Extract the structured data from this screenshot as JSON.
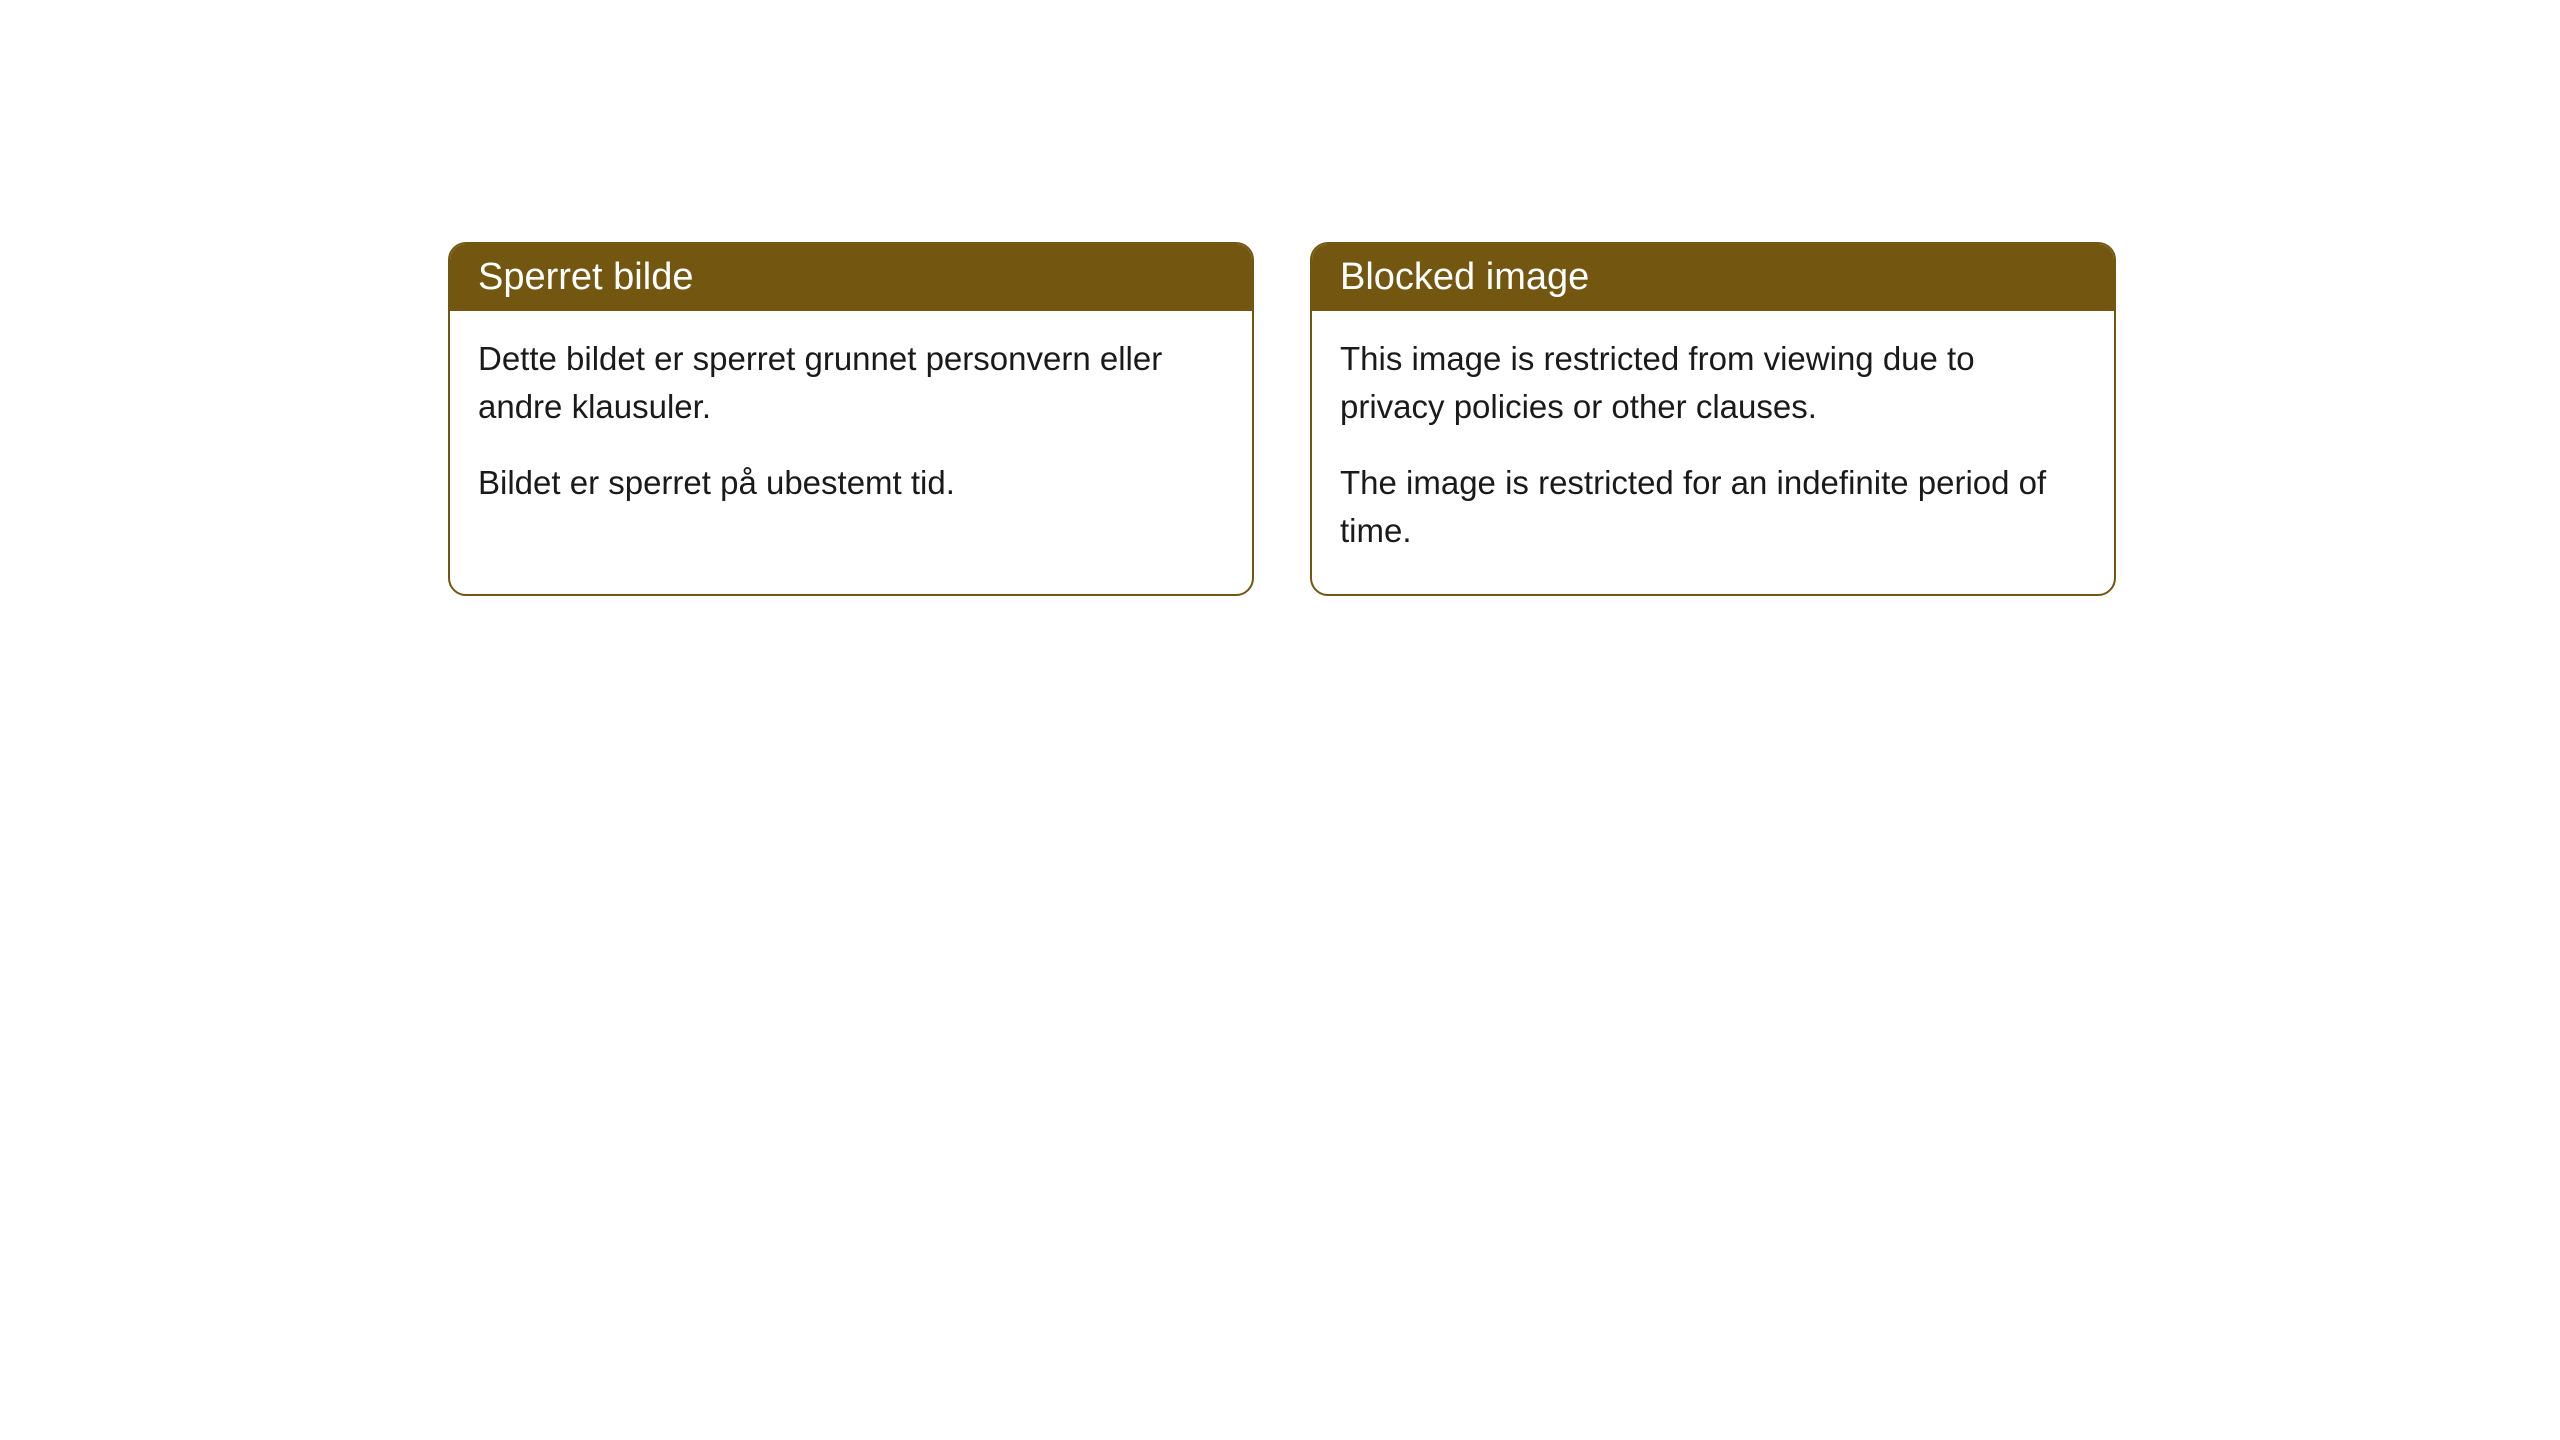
{
  "cards": [
    {
      "title": "Sperret bilde",
      "para1": "Dette bildet er sperret grunnet personvern eller andre klausuler.",
      "para2": "Bildet er sperret på ubestemt tid."
    },
    {
      "title": "Blocked image",
      "para1": "This image is restricted from viewing due to privacy policies or other clauses.",
      "para2": "The image is restricted for an indefinite period of time."
    }
  ],
  "style": {
    "header_bg": "#735610",
    "header_text_color": "#ffffff",
    "border_color": "#735610",
    "body_bg": "#ffffff",
    "body_text_color": "#1a1a1a",
    "border_radius": 18,
    "title_fontsize": 38,
    "body_fontsize": 33
  }
}
